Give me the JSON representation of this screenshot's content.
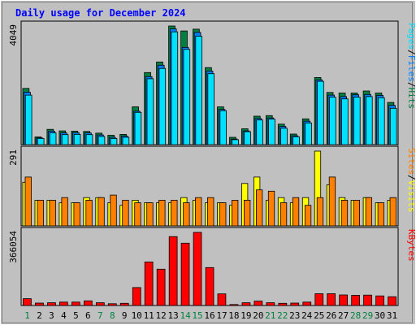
{
  "title": "Daily usage for December 2024",
  "colors": {
    "background": "#c0c0c0",
    "plot_bg": "#c0c0c0",
    "hits": "#008040",
    "files": "#0080ff",
    "pages": "#00e0ff",
    "visits": "#ffff00",
    "sites": "#ff8000",
    "kbytes": "#ff0000",
    "title": "#0000ff",
    "weekend_day": "#008040",
    "weekday": "#000000",
    "grid": "#808080"
  },
  "chart_data": {
    "type": "bar",
    "categories": [
      "1",
      "2",
      "3",
      "4",
      "5",
      "6",
      "7",
      "8",
      "9",
      "10",
      "11",
      "12",
      "13",
      "14",
      "15",
      "16",
      "17",
      "18",
      "19",
      "20",
      "21",
      "22",
      "23",
      "24",
      "25",
      "26",
      "27",
      "28",
      "29",
      "30",
      "31"
    ],
    "weekend_days": [
      "1",
      "7",
      "8",
      "14",
      "15",
      "21",
      "22",
      "28",
      "29"
    ],
    "panels": [
      {
        "name": "hits-files-pages",
        "ytick": "4049",
        "ymax": 4049,
        "legend": [
          "Pages",
          "Files",
          "Hits"
        ],
        "legend_separator": "/",
        "series": [
          {
            "name": "Hits",
            "values": [
              1920,
              260,
              520,
              470,
              460,
              450,
              390,
              320,
              350,
              1290,
              2460,
              2820,
              4049,
              3880,
              3940,
              2630,
              1290,
              250,
              540,
              970,
              990,
              700,
              360,
              880,
              2290,
              1780,
              1760,
              1760,
              1830,
              1760,
              1440
            ]
          },
          {
            "name": "Files",
            "values": [
              1790,
              230,
              460,
              400,
              410,
              400,
              330,
              250,
              290,
              1140,
              2320,
              2710,
              3950,
              3320,
              3830,
              2510,
              1200,
              190,
              470,
              890,
              910,
              620,
              300,
              800,
              2210,
              1690,
              1640,
              1700,
              1710,
              1680,
              1340
            ]
          },
          {
            "name": "Pages",
            "values": [
              1690,
              210,
              400,
              340,
              350,
              340,
              280,
              210,
              250,
              1100,
              2250,
              2600,
              3850,
              3250,
              3700,
              2420,
              1160,
              170,
              440,
              840,
              870,
              560,
              270,
              740,
              2160,
              1620,
              1560,
              1620,
              1640,
              1600,
              1240
            ]
          }
        ]
      },
      {
        "name": "visits-sites",
        "ytick": "291",
        "ymax": 291,
        "legend": [
          "Sites",
          "Visits"
        ],
        "legend_separator": "/",
        "series": [
          {
            "name": "Visits",
            "values": [
              170,
              100,
              100,
              90,
              90,
              110,
              110,
              90,
              80,
              100,
              90,
              90,
              90,
              110,
              100,
              90,
              90,
              80,
              165,
              190,
              100,
              110,
              90,
              110,
              291,
              160,
              110,
              100,
              110,
              90,
              100
            ]
          },
          {
            "name": "Sites",
            "values": [
              190,
              100,
              100,
              110,
              90,
              100,
              110,
              120,
              100,
              90,
              90,
              100,
              100,
              90,
              110,
              110,
              90,
              100,
              100,
              140,
              135,
              90,
              110,
              80,
              110,
              190,
              100,
              100,
              110,
              90,
              110
            ]
          }
        ]
      },
      {
        "name": "kbytes",
        "ytick": "366054",
        "ymax": 366054,
        "legend": [
          "KBytes"
        ],
        "legend_separator": "/",
        "series": [
          {
            "name": "KBytes",
            "values": [
              34000,
              12000,
              14000,
              17000,
              17000,
              23000,
              14000,
              9000,
              11000,
              90000,
              218000,
              182000,
              345000,
              312000,
              366054,
              190000,
              58000,
              5000,
              14000,
              22000,
              14000,
              11000,
              12000,
              17000,
              59000,
              59000,
              53000,
              51000,
              52000,
              48000,
              44000
            ]
          }
        ]
      }
    ]
  }
}
